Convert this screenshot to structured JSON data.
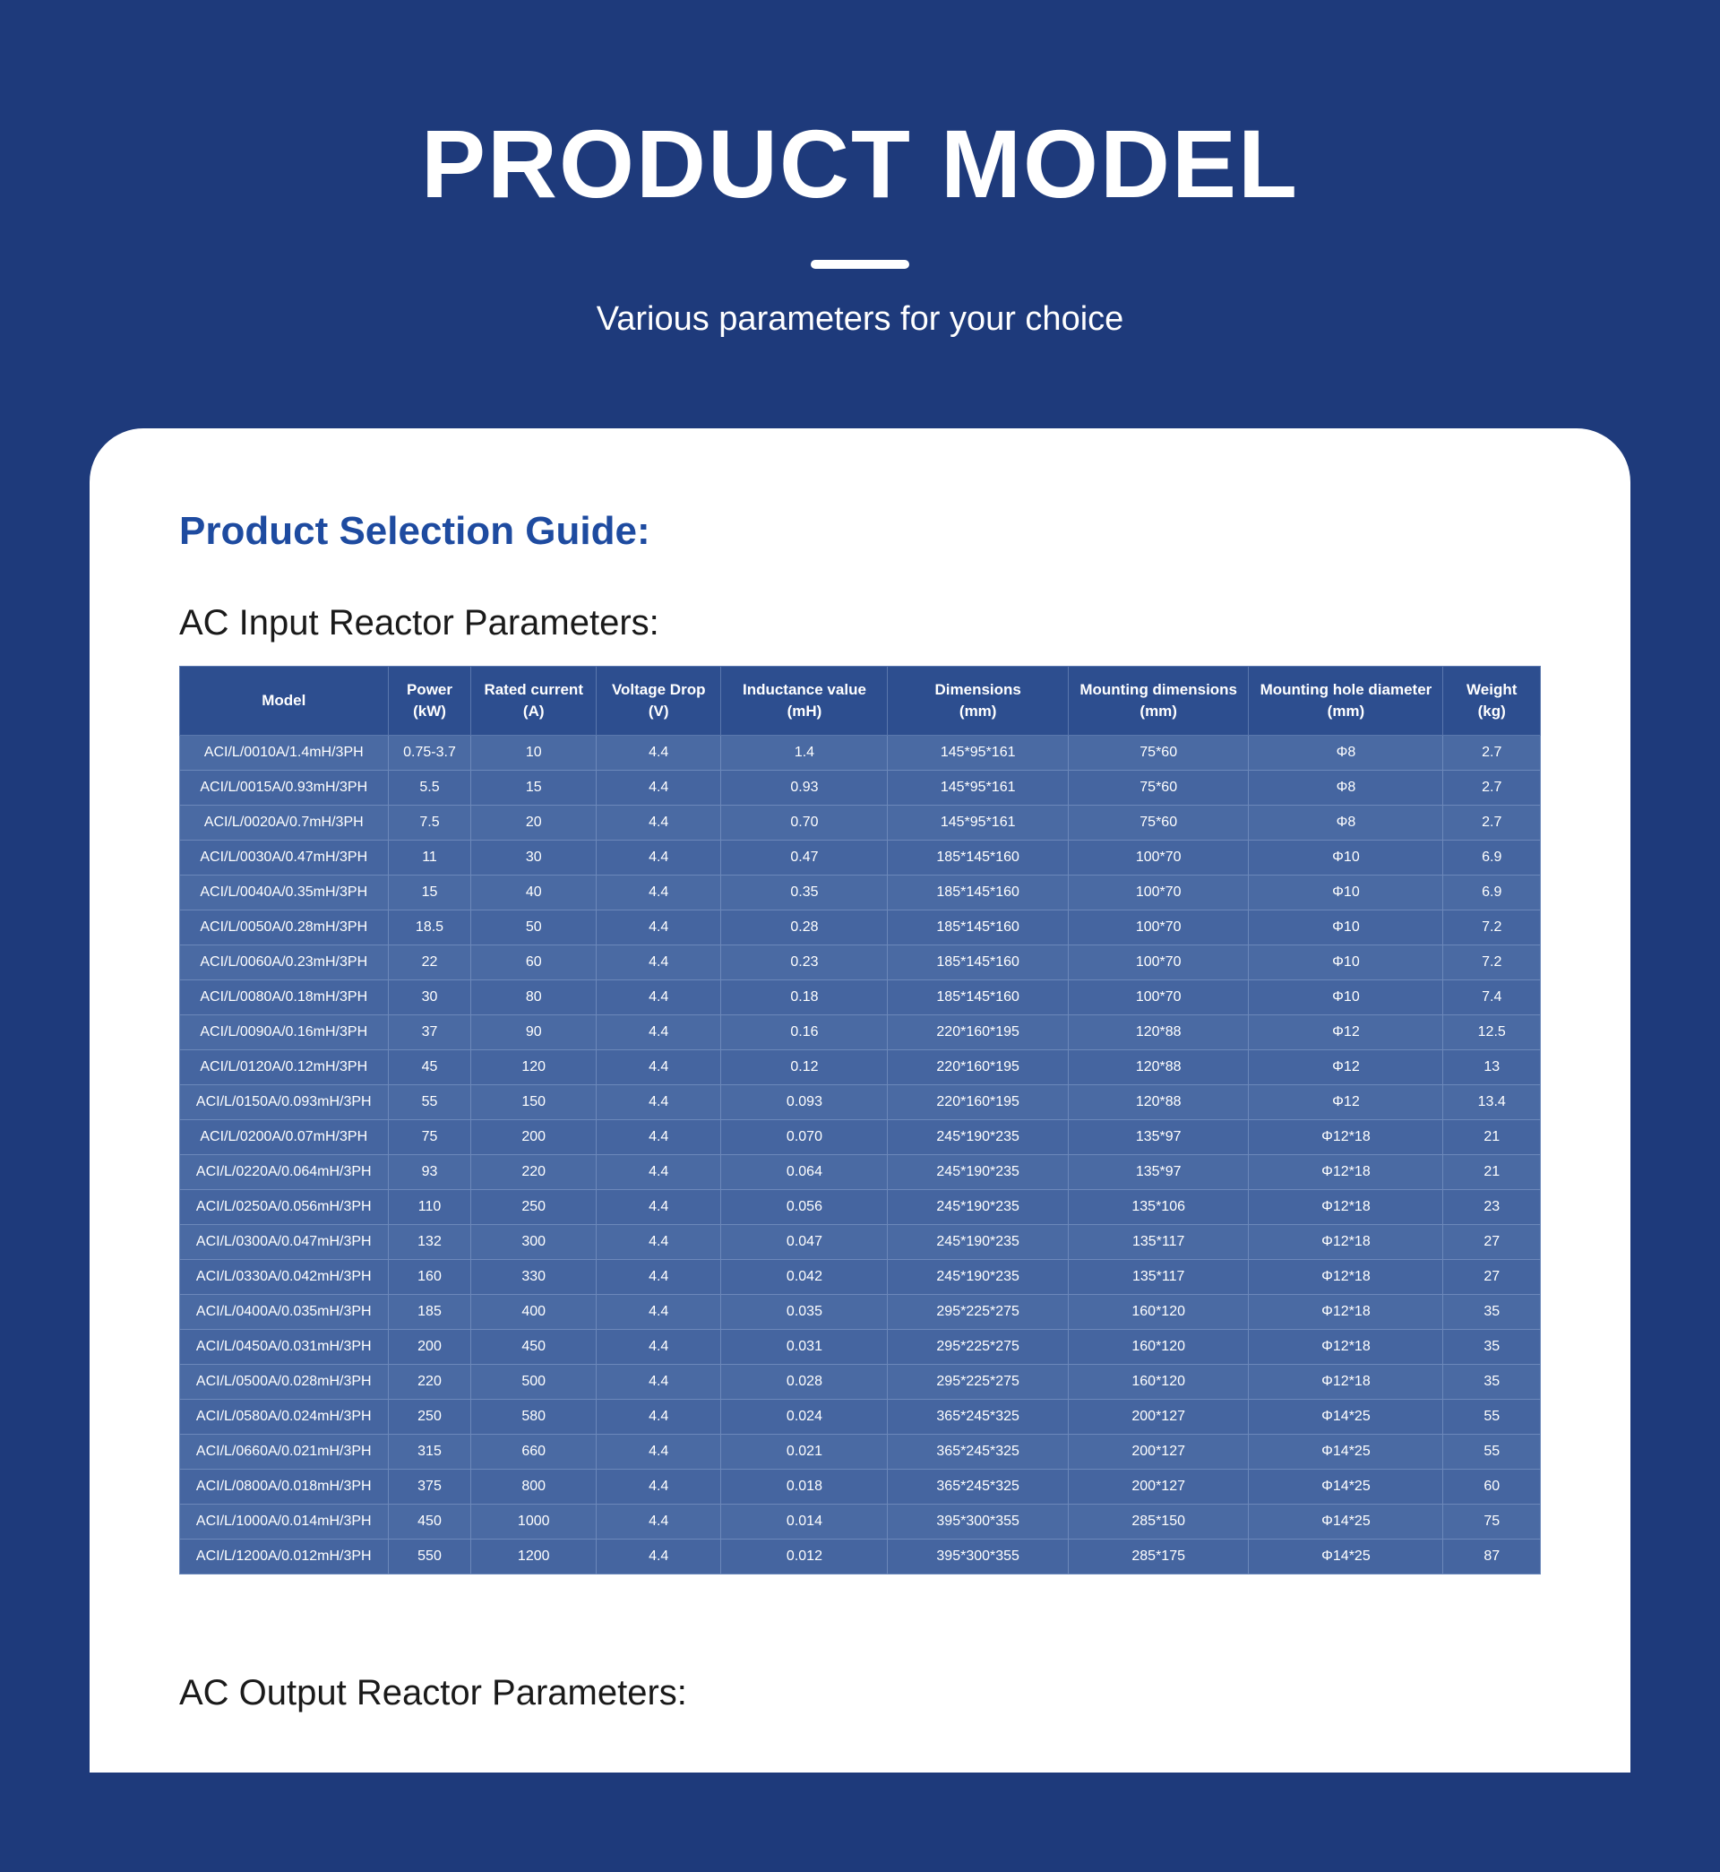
{
  "hero": {
    "title": "PRODUCT MODEL",
    "subtitle": "Various parameters for your choice"
  },
  "guide_title": "Product Selection Guide:",
  "table1": {
    "title": "AC Input Reactor Parameters:",
    "columns": [
      {
        "line1": "Model",
        "line2": ""
      },
      {
        "line1": "Power",
        "line2": "(kW)"
      },
      {
        "line1": "Rated  current",
        "line2": "(A)"
      },
      {
        "line1": "Voltage Drop",
        "line2": "(V)"
      },
      {
        "line1": "Inductance value",
        "line2": "(mH)"
      },
      {
        "line1": "Dimensions",
        "line2": "(mm)"
      },
      {
        "line1": "Mounting dimensions",
        "line2": "(mm)"
      },
      {
        "line1": "Mounting hole diameter",
        "line2": "(mm)"
      },
      {
        "line1": "Weight",
        "line2": "(kg)"
      }
    ],
    "rows": [
      [
        "ACI/L/0010A/1.4mH/3PH",
        "0.75-3.7",
        "10",
        "4.4",
        "1.4",
        "145*95*161",
        "75*60",
        "Φ8",
        "2.7"
      ],
      [
        "ACI/L/0015A/0.93mH/3PH",
        "5.5",
        "15",
        "4.4",
        "0.93",
        "145*95*161",
        "75*60",
        "Φ8",
        "2.7"
      ],
      [
        "ACI/L/0020A/0.7mH/3PH",
        "7.5",
        "20",
        "4.4",
        "0.70",
        "145*95*161",
        "75*60",
        "Φ8",
        "2.7"
      ],
      [
        "ACI/L/0030A/0.47mH/3PH",
        "11",
        "30",
        "4.4",
        "0.47",
        "185*145*160",
        "100*70",
        "Φ10",
        "6.9"
      ],
      [
        "ACI/L/0040A/0.35mH/3PH",
        "15",
        "40",
        "4.4",
        "0.35",
        "185*145*160",
        "100*70",
        "Φ10",
        "6.9"
      ],
      [
        "ACI/L/0050A/0.28mH/3PH",
        "18.5",
        "50",
        "4.4",
        "0.28",
        "185*145*160",
        "100*70",
        "Φ10",
        "7.2"
      ],
      [
        "ACI/L/0060A/0.23mH/3PH",
        "22",
        "60",
        "4.4",
        "0.23",
        "185*145*160",
        "100*70",
        "Φ10",
        "7.2"
      ],
      [
        "ACI/L/0080A/0.18mH/3PH",
        "30",
        "80",
        "4.4",
        "0.18",
        "185*145*160",
        "100*70",
        "Φ10",
        "7.4"
      ],
      [
        "ACI/L/0090A/0.16mH/3PH",
        "37",
        "90",
        "4.4",
        "0.16",
        "220*160*195",
        "120*88",
        "Φ12",
        "12.5"
      ],
      [
        "ACI/L/0120A/0.12mH/3PH",
        "45",
        "120",
        "4.4",
        "0.12",
        "220*160*195",
        "120*88",
        "Φ12",
        "13"
      ],
      [
        "ACI/L/0150A/0.093mH/3PH",
        "55",
        "150",
        "4.4",
        "0.093",
        "220*160*195",
        "120*88",
        "Φ12",
        "13.4"
      ],
      [
        "ACI/L/0200A/0.07mH/3PH",
        "75",
        "200",
        "4.4",
        "0.070",
        "245*190*235",
        "135*97",
        "Φ12*18",
        "21"
      ],
      [
        "ACI/L/0220A/0.064mH/3PH",
        "93",
        "220",
        "4.4",
        "0.064",
        "245*190*235",
        "135*97",
        "Φ12*18",
        "21"
      ],
      [
        "ACI/L/0250A/0.056mH/3PH",
        "110",
        "250",
        "4.4",
        "0.056",
        "245*190*235",
        "135*106",
        "Φ12*18",
        "23"
      ],
      [
        "ACI/L/0300A/0.047mH/3PH",
        "132",
        "300",
        "4.4",
        "0.047",
        "245*190*235",
        "135*117",
        "Φ12*18",
        "27"
      ],
      [
        "ACI/L/0330A/0.042mH/3PH",
        "160",
        "330",
        "4.4",
        "0.042",
        "245*190*235",
        "135*117",
        "Φ12*18",
        "27"
      ],
      [
        "ACI/L/0400A/0.035mH/3PH",
        "185",
        "400",
        "4.4",
        "0.035",
        "295*225*275",
        "160*120",
        "Φ12*18",
        "35"
      ],
      [
        "ACI/L/0450A/0.031mH/3PH",
        "200",
        "450",
        "4.4",
        "0.031",
        "295*225*275",
        "160*120",
        "Φ12*18",
        "35"
      ],
      [
        "ACI/L/0500A/0.028mH/3PH",
        "220",
        "500",
        "4.4",
        "0.028",
        "295*225*275",
        "160*120",
        "Φ12*18",
        "35"
      ],
      [
        "ACI/L/0580A/0.024mH/3PH",
        "250",
        "580",
        "4.4",
        "0.024",
        "365*245*325",
        "200*127",
        "Φ14*25",
        "55"
      ],
      [
        "ACI/L/0660A/0.021mH/3PH",
        "315",
        "660",
        "4.4",
        "0.021",
        "365*245*325",
        "200*127",
        "Φ14*25",
        "55"
      ],
      [
        "ACI/L/0800A/0.018mH/3PH",
        "375",
        "800",
        "4.4",
        "0.018",
        "365*245*325",
        "200*127",
        "Φ14*25",
        "60"
      ],
      [
        "ACI/L/1000A/0.014mH/3PH",
        "450",
        "1000",
        "4.4",
        "0.014",
        "395*300*355",
        "285*150",
        "Φ14*25",
        "75"
      ],
      [
        "ACI/L/1200A/0.012mH/3PH",
        "550",
        "1200",
        "4.4",
        "0.012",
        "395*300*355",
        "285*175",
        "Φ14*25",
        "87"
      ]
    ]
  },
  "table2": {
    "title": "AC Output Reactor Parameters:"
  },
  "colors": {
    "page_bg": "#1e3a7b",
    "card_bg": "#ffffff",
    "title_white": "#ffffff",
    "guide_blue": "#1e4ba0",
    "section_black": "#1a1a1a",
    "th_bg": "#2d4e8f",
    "td_bg": "#4a6aa3",
    "td_bg_alt": "#4565a0",
    "th_border": "#5a77ad",
    "td_border": "#6c88ba"
  }
}
